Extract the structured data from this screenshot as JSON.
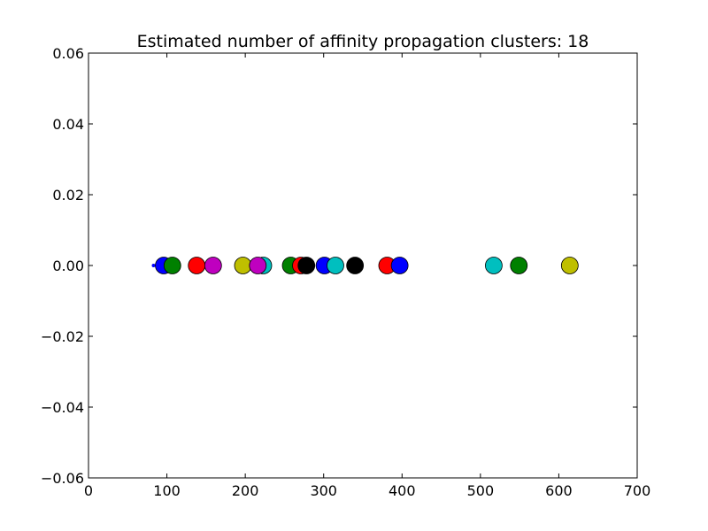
{
  "chart_data": {
    "type": "scatter",
    "title": "Estimated number of affinity propagation clusters: 18",
    "xlabel": "",
    "ylabel": "",
    "xlim": [
      0,
      700
    ],
    "ylim": [
      -0.06,
      0.06
    ],
    "x_ticks": [
      0,
      100,
      200,
      300,
      400,
      500,
      600,
      700
    ],
    "y_ticks": [
      -0.06,
      -0.04,
      -0.02,
      0.0,
      0.02,
      0.04,
      0.06
    ],
    "x_tick_labels": [
      "0",
      "100",
      "200",
      "300",
      "400",
      "500",
      "600",
      "700"
    ],
    "y_tick_labels": [
      "−0.06",
      "−0.04",
      "−0.02",
      "0.00",
      "0.02",
      "0.04",
      "0.06"
    ],
    "grid": false,
    "points": [
      {
        "x": 83,
        "y": 0,
        "color": "#0000ff",
        "size": "small"
      },
      {
        "x": 96,
        "y": 0,
        "color": "#0000ff"
      },
      {
        "x": 107,
        "y": 0,
        "color": "#008000"
      },
      {
        "x": 138,
        "y": 0,
        "color": "#ff0000"
      },
      {
        "x": 159,
        "y": 0,
        "color": "#bf00bf"
      },
      {
        "x": 197,
        "y": 0,
        "color": "#bfbf00"
      },
      {
        "x": 223,
        "y": 0,
        "color": "#00bfbf"
      },
      {
        "x": 216,
        "y": 0,
        "color": "#bf00bf"
      },
      {
        "x": 258,
        "y": 0,
        "color": "#008000"
      },
      {
        "x": 271,
        "y": 0,
        "color": "#ff0000"
      },
      {
        "x": 278,
        "y": 0,
        "color": "#000000"
      },
      {
        "x": 301,
        "y": 0,
        "color": "#0000ff"
      },
      {
        "x": 315,
        "y": 0,
        "color": "#00bfbf"
      },
      {
        "x": 340,
        "y": 0,
        "color": "#000000"
      },
      {
        "x": 381,
        "y": 0,
        "color": "#ff0000"
      },
      {
        "x": 397,
        "y": 0,
        "color": "#0000ff"
      },
      {
        "x": 517,
        "y": 0,
        "color": "#00bfbf"
      },
      {
        "x": 549,
        "y": 0,
        "color": "#008000"
      },
      {
        "x": 614,
        "y": 0,
        "color": "#bfbf00"
      }
    ]
  }
}
